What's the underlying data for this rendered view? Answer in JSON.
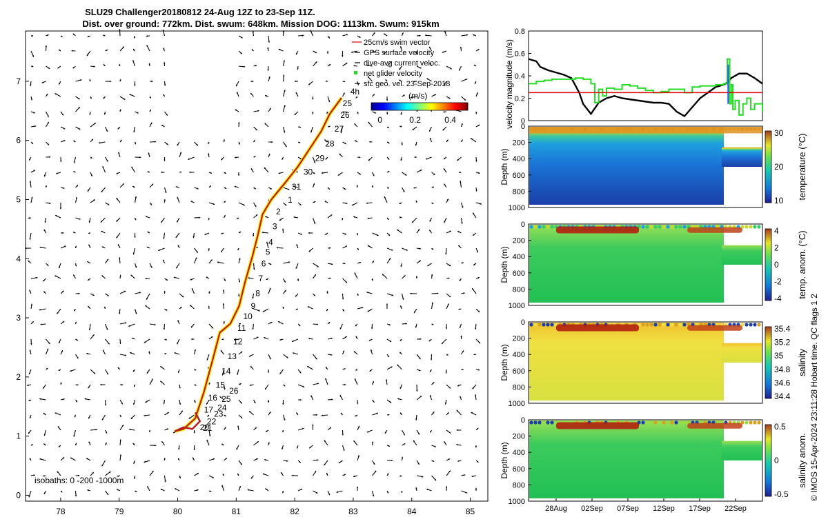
{
  "title_line1": "SLU29 Challenger20180812 24-Aug 12Z to 23-Sep 11Z.",
  "title_line2": "Dist. over ground: 772km. Dist. swum: 648km. Mission DOG: 1113km. Swum: 915km",
  "credit": "© IMOS 15-Apr-2024 23:11:28 Hobart time. QC flags 1  2",
  "chart_data": [
    {
      "type": "scatter",
      "name": "track_map",
      "xlim": [
        77.4,
        85.3
      ],
      "ylim": [
        -0.1,
        7.85
      ],
      "xticks": [
        78,
        79,
        80,
        81,
        82,
        83,
        84,
        85
      ],
      "yticks": [
        0,
        1,
        2,
        3,
        4,
        5,
        6,
        7
      ],
      "track": [
        [
          79.95,
          1.08
        ],
        [
          80.1,
          1.12
        ],
        [
          80.3,
          1.3
        ],
        [
          80.45,
          1.75
        ],
        [
          80.6,
          2.3
        ],
        [
          80.72,
          2.75
        ],
        [
          80.9,
          2.9
        ],
        [
          81.05,
          3.2
        ],
        [
          81.15,
          3.6
        ],
        [
          81.28,
          4.05
        ],
        [
          81.37,
          4.4
        ],
        [
          81.45,
          4.75
        ],
        [
          81.6,
          5.0
        ],
        [
          81.85,
          5.3
        ],
        [
          82.05,
          5.55
        ],
        [
          82.25,
          5.85
        ],
        [
          82.45,
          6.15
        ],
        [
          82.6,
          6.45
        ],
        [
          82.8,
          6.72
        ]
      ],
      "track_hook": [
        [
          79.95,
          1.08
        ],
        [
          80.1,
          1.15
        ],
        [
          80.25,
          1.12
        ],
        [
          80.38,
          1.25
        ],
        [
          80.3,
          1.4
        ]
      ],
      "day_labels": [
        {
          "t": "25",
          "x": 82.82,
          "y": 6.58
        },
        {
          "t": "26",
          "x": 82.78,
          "y": 6.38
        },
        {
          "t": "27",
          "x": 82.68,
          "y": 6.15
        },
        {
          "t": "28",
          "x": 82.52,
          "y": 5.9
        },
        {
          "t": "29",
          "x": 82.35,
          "y": 5.65
        },
        {
          "t": "30",
          "x": 82.15,
          "y": 5.42
        },
        {
          "t": "31",
          "x": 81.95,
          "y": 5.17
        },
        {
          "t": "1",
          "x": 81.88,
          "y": 4.95
        },
        {
          "t": "2",
          "x": 81.68,
          "y": 4.75
        },
        {
          "t": "3",
          "x": 81.62,
          "y": 4.5
        },
        {
          "t": "4",
          "x": 81.55,
          "y": 4.23
        },
        {
          "t": "5",
          "x": 81.5,
          "y": 4.07
        },
        {
          "t": "6",
          "x": 81.43,
          "y": 3.87
        },
        {
          "t": "7",
          "x": 81.38,
          "y": 3.62
        },
        {
          "t": "8",
          "x": 81.33,
          "y": 3.37
        },
        {
          "t": "9",
          "x": 81.25,
          "y": 3.15
        },
        {
          "t": "10",
          "x": 81.12,
          "y": 2.98
        },
        {
          "t": "11",
          "x": 81.02,
          "y": 2.78
        },
        {
          "t": "12",
          "x": 80.95,
          "y": 2.55
        },
        {
          "t": "13",
          "x": 80.85,
          "y": 2.3
        },
        {
          "t": "14",
          "x": 80.75,
          "y": 2.05
        },
        {
          "t": "15",
          "x": 80.65,
          "y": 1.82
        },
        {
          "t": "26",
          "x": 80.88,
          "y": 1.72
        },
        {
          "t": "16",
          "x": 80.52,
          "y": 1.6
        },
        {
          "t": "25",
          "x": 80.75,
          "y": 1.58
        },
        {
          "t": "24",
          "x": 80.68,
          "y": 1.43
        },
        {
          "t": "17",
          "x": 80.45,
          "y": 1.4
        },
        {
          "t": "23",
          "x": 80.62,
          "y": 1.33
        },
        {
          "t": "22",
          "x": 80.5,
          "y": 1.2
        },
        {
          "t": "20",
          "x": 80.38,
          "y": 1.1
        },
        {
          "t": "21",
          "x": 80.43,
          "y": 1.09
        },
        {
          "t": "4h",
          "x": 82.95,
          "y": 6.78
        }
      ],
      "legend": [
        "25cm/s swim vector",
        "GPS surface velocity",
        "dive-avg current veloc.",
        "net glider velocity",
        "sfc geo. vel. 23-Sep-2018"
      ],
      "colorbar": {
        "label": "(m/s)",
        "ticks": [
          "0",
          "0.2",
          "0.4"
        ],
        "range": [
          -0.05,
          0.5
        ]
      },
      "isobaths_label": "isobaths: 0 -200 -1000m"
    },
    {
      "type": "line",
      "name": "velocity_panel",
      "ylabel": "velocity magnitude (m/s)",
      "ylim": [
        0,
        0.8
      ],
      "yticks": [
        "0",
        "0.2",
        "0.4",
        "0.6",
        "0.8"
      ],
      "xlim": [
        0,
        30
      ],
      "series": [
        {
          "name": "depth-avg speed",
          "color": "#000000",
          "x": [
            0,
            1,
            1.5,
            2.5,
            3.5,
            4.5,
            5.5,
            6.5,
            7,
            8,
            9,
            10,
            11,
            12,
            13,
            14,
            15,
            16,
            17,
            18,
            19,
            20,
            21,
            22,
            23,
            24,
            25,
            25.5,
            26,
            27,
            28,
            29,
            30
          ],
          "y": [
            0.55,
            0.53,
            0.48,
            0.45,
            0.43,
            0.41,
            0.38,
            0.25,
            0.15,
            0.06,
            0.16,
            0.2,
            0.22,
            0.2,
            0.19,
            0.18,
            0.17,
            0.16,
            0.16,
            0.15,
            0.08,
            0.04,
            0.12,
            0.2,
            0.25,
            0.3,
            0.32,
            0.34,
            0.38,
            0.42,
            0.42,
            0.38,
            0.33
          ]
        },
        {
          "name": "net glider velocity",
          "color": "#22dd22",
          "x": [
            0,
            0.5,
            1,
            2,
            3,
            4,
            5,
            6,
            7,
            8,
            8.5,
            9,
            9.5,
            10,
            11,
            12,
            13,
            14,
            15,
            16,
            17,
            18,
            19,
            20,
            21,
            22,
            23,
            24,
            25,
            25.5,
            25.8,
            26,
            26.2,
            26.5,
            27,
            27.5,
            28,
            28.5,
            29,
            30
          ],
          "y": [
            0.33,
            0.33,
            0.35,
            0.36,
            0.37,
            0.37,
            0.37,
            0.38,
            0.37,
            0.33,
            0.16,
            0.28,
            0.22,
            0.29,
            0.28,
            0.32,
            0.31,
            0.29,
            0.27,
            0.25,
            0.26,
            0.28,
            0.28,
            0.25,
            0.3,
            0.31,
            0.31,
            0.32,
            0.33,
            0.55,
            0.15,
            0.32,
            0.1,
            0.18,
            0.05,
            0.15,
            0.2,
            0.1,
            0.15,
            0.08
          ]
        },
        {
          "name": "swim vector reference",
          "color": "#dd0000",
          "x": [
            0,
            30
          ],
          "y": [
            0.25,
            0.25
          ]
        }
      ]
    },
    {
      "type": "heatmap",
      "name": "temperature",
      "ylabel": "Depth (m)",
      "colorbar_label": "temperature (°C)",
      "colorbar_ticks": [
        "10",
        "20",
        "30"
      ],
      "yticks": [
        "0",
        "200",
        "400",
        "600",
        "800",
        "1000"
      ]
    },
    {
      "type": "heatmap",
      "name": "temp_anom",
      "ylabel": "Depth (m)",
      "colorbar_label": "temp. anom. (°C)",
      "colorbar_ticks": [
        "-4",
        "-2",
        "0",
        "2",
        "4"
      ],
      "yticks": [
        "0",
        "200",
        "400",
        "600",
        "800",
        "1000"
      ]
    },
    {
      "type": "heatmap",
      "name": "salinity",
      "ylabel": "Depth (m)",
      "colorbar_label": "salinity",
      "colorbar_ticks": [
        "34.4",
        "34.6",
        "34.8",
        "35",
        "35.2",
        "35.4"
      ],
      "yticks": [
        "0",
        "200",
        "400",
        "600",
        "800",
        "1000"
      ]
    },
    {
      "type": "heatmap",
      "name": "salinity_anom",
      "ylabel": "Depth (m)",
      "colorbar_label": "salinity anom.",
      "colorbar_ticks": [
        "-0.5",
        "0",
        "0.5"
      ],
      "yticks": [
        "0",
        "200",
        "400",
        "600",
        "800",
        "1000"
      ],
      "xticks": [
        "28Aug",
        "02Sep",
        "07Sep",
        "12Sep",
        "17Sep",
        "22Sep"
      ]
    }
  ]
}
